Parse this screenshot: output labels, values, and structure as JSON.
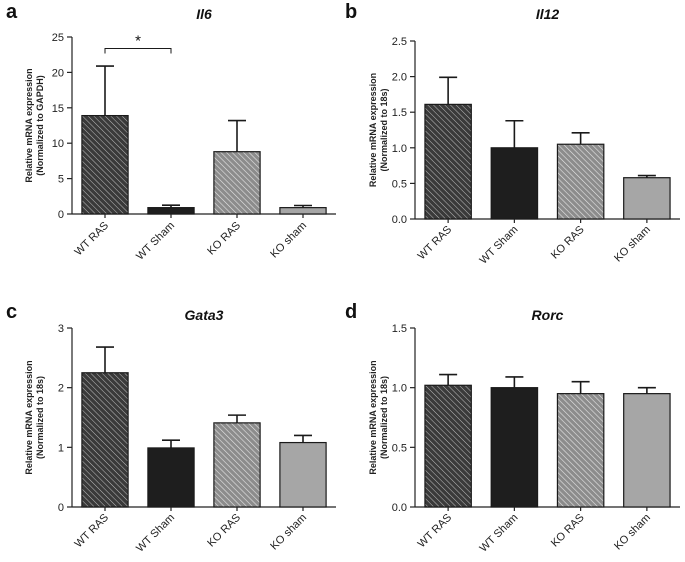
{
  "patterns": {
    "wt_ras": {
      "bg": "#3a3a3a",
      "line": "#bdbdbd"
    },
    "ko_ras": {
      "bg": "#8c8c8c",
      "line": "#e6e6e6"
    },
    "wt_sham": "#1e1e1e",
    "ko_sham": "#a6a6a6"
  },
  "chart_data": [
    {
      "panel": "a",
      "type": "bar",
      "title": "Il6",
      "ylabel": [
        "Relative mRNA expression",
        "(Normalized to GAPDH)"
      ],
      "categories": [
        "WT RAS",
        "WT Sham",
        "KO RAS",
        "KO sham"
      ],
      "values": [
        13.9,
        0.9,
        8.8,
        0.9
      ],
      "errors": [
        7.0,
        0.35,
        4.4,
        0.3
      ],
      "ylim": [
        0,
        25
      ],
      "yticks": [
        "0",
        "5",
        "10",
        "15",
        "20",
        "25"
      ],
      "significance": {
        "from": 0,
        "to": 1,
        "label": "*"
      }
    },
    {
      "panel": "b",
      "type": "bar",
      "title": "Il12",
      "ylabel": [
        "Relative mRNA expression",
        "(Normalized to 18s)"
      ],
      "categories": [
        "WT RAS",
        "WT Sham",
        "KO RAS",
        "KO sham"
      ],
      "values": [
        1.61,
        1.0,
        1.05,
        0.58
      ],
      "errors": [
        0.38,
        0.38,
        0.16,
        0.03
      ],
      "ylim": [
        0,
        2.5
      ],
      "yticks": [
        "0.0",
        "0.5",
        "1.0",
        "1.5",
        "2.0",
        "2.5"
      ]
    },
    {
      "panel": "c",
      "type": "bar",
      "title": "Gata3",
      "ylabel": [
        "Relative mRNA expression",
        "(Normalized to 18s)"
      ],
      "categories": [
        "WT RAS",
        "WT Sham",
        "KO RAS",
        "KO sham"
      ],
      "values": [
        2.25,
        0.99,
        1.41,
        1.08
      ],
      "errors": [
        0.43,
        0.13,
        0.13,
        0.12
      ],
      "ylim": [
        0,
        3
      ],
      "yticks": [
        "0",
        "1",
        "2",
        "3"
      ]
    },
    {
      "panel": "d",
      "type": "bar",
      "title": "Rorc",
      "ylabel": [
        "Relative mRNA expression",
        "(Normalized to 18s)"
      ],
      "categories": [
        "WT RAS",
        "WT Sham",
        "KO RAS",
        "KO sham"
      ],
      "values": [
        1.02,
        1.0,
        0.95,
        0.95
      ],
      "errors": [
        0.09,
        0.09,
        0.1,
        0.05
      ],
      "ylim": [
        0,
        1.5
      ],
      "yticks": [
        "0.0",
        "0.5",
        "1.0",
        "1.5"
      ]
    }
  ]
}
